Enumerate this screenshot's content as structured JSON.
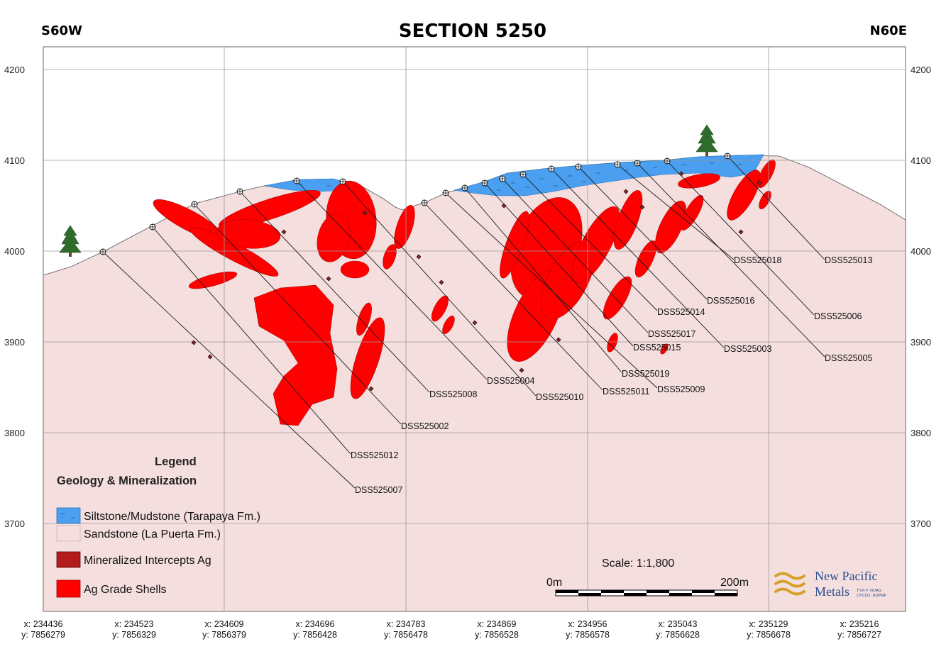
{
  "header": {
    "left": "S60W",
    "title": "SECTION 5250",
    "right": "N60E"
  },
  "colors": {
    "sandstone": "#f5dede",
    "siltstone": "#4a9ff0",
    "grade_shell": "#ff0000",
    "intercept": "#b31a1a",
    "grid": "#9a9a9a",
    "logo_gold": "#d4a22a",
    "logo_blue": "#2a4f8f"
  },
  "elevation_ticks": [
    "4200",
    "4100",
    "4000",
    "3900",
    "3800",
    "3700"
  ],
  "coordinates": [
    {
      "x": "x: 234436",
      "y": "y: 7856279"
    },
    {
      "x": "x: 234523",
      "y": "y: 7856329"
    },
    {
      "x": "x: 234609",
      "y": "y: 7856379"
    },
    {
      "x": "x: 234696",
      "y": "y: 7856428"
    },
    {
      "x": "x: 234783",
      "y": "y: 7856478"
    },
    {
      "x": "x: 234869",
      "y": "y: 7856528"
    },
    {
      "x": "x: 234956",
      "y": "y: 7856578"
    },
    {
      "x": "x: 235043",
      "y": "y: 7856628"
    },
    {
      "x": "x: 235129",
      "y": "y: 7856678"
    },
    {
      "x": "x: 235216",
      "y": "y: 7856727"
    }
  ],
  "drillholes": [
    "DSS525007",
    "DSS525012",
    "DSS525002",
    "DSS525008",
    "DSS525004",
    "DSS525010",
    "DSS525011",
    "DSS525009",
    "DSS525019",
    "DSS525015",
    "DSS525017",
    "DSS525014",
    "DSS525003",
    "DSS525016",
    "DSS525018",
    "DSS525005",
    "DSS525006",
    "DSS525013"
  ],
  "legend": {
    "title": "Legend",
    "subtitle": "Geology & Mineralization",
    "items": [
      "Siltstone/Mudstone (Tarapaya Fm.)",
      "Sandstone (La Puerta Fm.)",
      "Mineralized Intercepts Ag",
      "Ag Grade Shells"
    ]
  },
  "scale": {
    "label": "Scale: 1:1,800",
    "start": "0m",
    "end": "200m"
  },
  "logo": {
    "line1": "New Pacific",
    "line2": "Metals",
    "tickers": "TSX-V: NUAG",
    "tickers2": "OTCQX: NUPMF"
  }
}
